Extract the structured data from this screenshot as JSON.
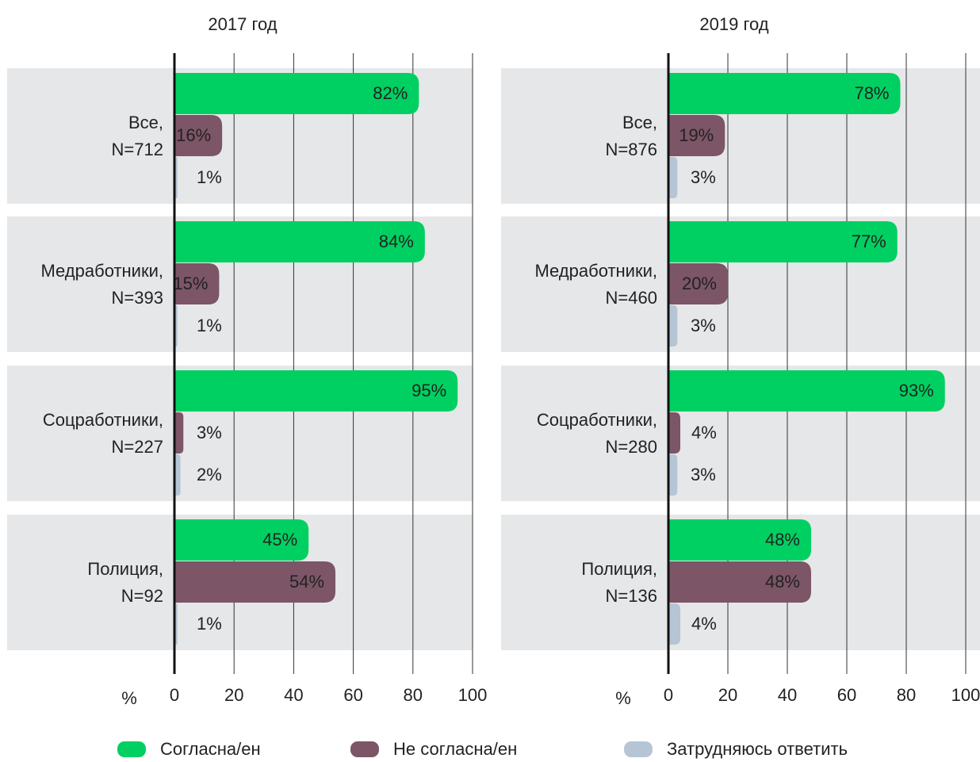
{
  "legend": [
    {
      "name": "Согласна/ен",
      "color": "#00d061"
    },
    {
      "name": "Не согласна/ен",
      "color": "#7c5566"
    },
    {
      "name": "Затрудняюсь ответить",
      "color": "#b5c5d6"
    }
  ],
  "chart_data": [
    {
      "type": "bar",
      "orientation": "horizontal",
      "title": "2017 год",
      "categories": [
        "Все,\nN=712",
        "Медработники,\nN=393",
        "Соцработники,\nN=227",
        "Полиция,\nN=92"
      ],
      "series": [
        {
          "values": [
            82,
            84,
            95,
            45
          ],
          "value_labels": [
            "82%",
            "84%",
            "95%",
            "45%"
          ]
        },
        {
          "values": [
            16,
            15,
            3,
            54
          ],
          "value_labels": [
            "16%",
            "15%",
            "3%",
            "54%"
          ]
        },
        {
          "values": [
            1,
            1,
            2,
            1
          ],
          "value_labels": [
            "1%",
            "1%",
            "2%",
            "1%"
          ]
        }
      ],
      "x_label": "%",
      "xlim": [
        0,
        100
      ],
      "xticks": [
        0,
        20,
        40,
        60,
        80,
        100
      ],
      "grid": true
    },
    {
      "type": "bar",
      "orientation": "horizontal",
      "title": "2019 год",
      "categories": [
        "Все,\nN=876",
        "Медработники,\nN=460",
        "Соцработники,\nN=280",
        "Полиция,\nN=136"
      ],
      "series": [
        {
          "values": [
            78,
            77,
            93,
            48
          ],
          "value_labels": [
            "78%",
            "77%",
            "93%",
            "48%"
          ]
        },
        {
          "values": [
            19,
            20,
            4,
            48
          ],
          "value_labels": [
            "19%",
            "20%",
            "4%",
            "48%"
          ]
        },
        {
          "values": [
            3,
            3,
            3,
            4
          ],
          "value_labels": [
            "3%",
            "3%",
            "3%",
            "4%"
          ]
        }
      ],
      "x_label": "%",
      "xlim": [
        0,
        100
      ],
      "xticks": [
        0,
        20,
        40,
        60,
        80,
        100
      ],
      "grid": true
    }
  ]
}
